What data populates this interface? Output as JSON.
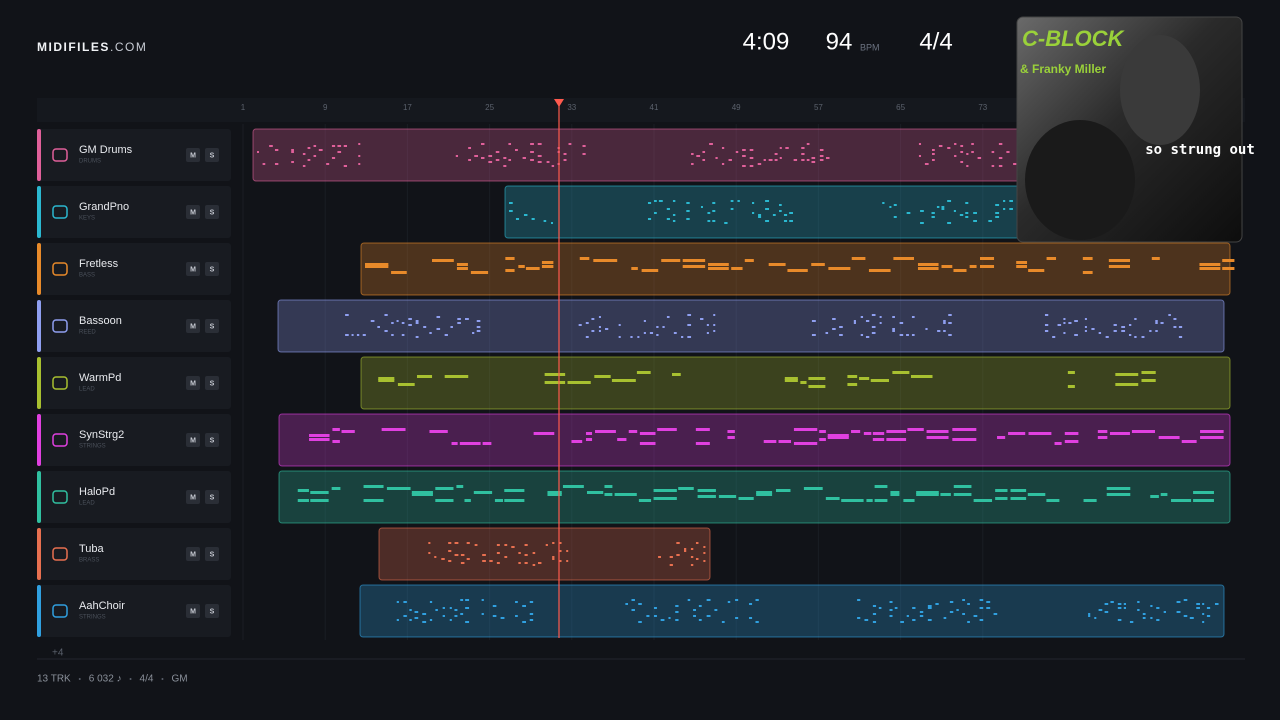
{
  "header": {
    "logo": "MIDIFILES",
    "logo_suffix": ".COM",
    "duration": "4:09",
    "tempo": "94",
    "tempo_unit": "BPM",
    "meter": "4/4"
  },
  "ruler": [
    "1",
    "9",
    "17",
    "25",
    "33",
    "41",
    "49",
    "57",
    "65",
    "73"
  ],
  "tracks": [
    {
      "name": "GM Drums",
      "type": "DRUMS",
      "mute": "M",
      "solo": "S"
    },
    {
      "name": "GrandPno",
      "type": "KEYS",
      "mute": "M",
      "solo": "S"
    },
    {
      "name": "Fretless",
      "type": "BASS",
      "mute": "M",
      "solo": "S"
    },
    {
      "name": "Bassoon",
      "type": "REED",
      "mute": "M",
      "solo": "S"
    },
    {
      "name": "WarmPd",
      "type": "LEAD",
      "mute": "M",
      "solo": "S"
    },
    {
      "name": "SynStrg2",
      "type": "STRINGS",
      "mute": "M",
      "solo": "S"
    },
    {
      "name": "HaloPd",
      "type": "LEAD",
      "mute": "M",
      "solo": "S"
    },
    {
      "name": "Tuba",
      "type": "BRASS",
      "mute": "M",
      "solo": "S"
    },
    {
      "name": "AahChoir",
      "type": "STRINGS",
      "mute": "M",
      "solo": "S"
    }
  ],
  "more_tracks": "+4",
  "footer": [
    "13 TRK",
    "6 032 ♪",
    "4/4",
    "GM"
  ],
  "album": {
    "artist": "C-BLOCK",
    "featuring": "& Franky Miller",
    "title": "so strung out"
  }
}
